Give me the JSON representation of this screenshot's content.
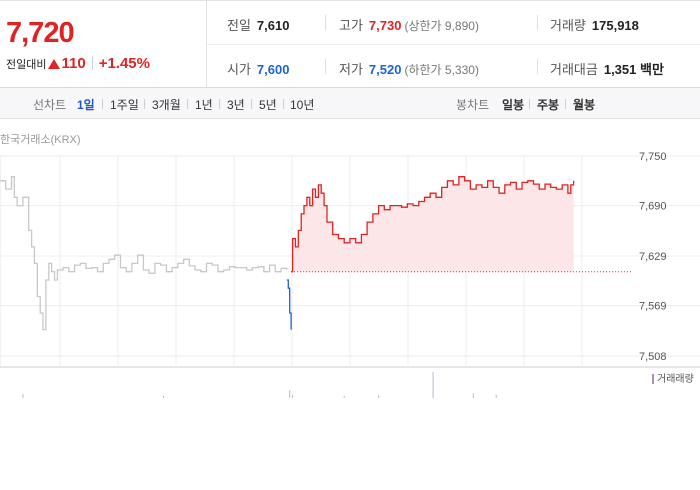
{
  "summary": {
    "price": "7,720",
    "change_label": "전일대비",
    "change_amount": "110",
    "change_rate": "+1.45%",
    "prev_close_label": "전일",
    "prev_close": "7,610",
    "high_label": "고가",
    "high": "7,730",
    "upper_limit": "(상한가 9,890)",
    "volume_label": "거래량",
    "volume": "175,918",
    "open_label": "시가",
    "open": "7,600",
    "low_label": "저가",
    "low": "7,520",
    "lower_limit": "(하한가 5,330)",
    "trade_value_label": "거래대금",
    "trade_value": "1,351 백만"
  },
  "tabs": {
    "line_label": "선차트",
    "line_periods": [
      "1일",
      "1주일",
      "3개월",
      "1년",
      "3년",
      "5년",
      "10년"
    ],
    "candle_label": "봉차트",
    "candle_periods": [
      "일봉",
      "주봉",
      "월봉"
    ]
  },
  "source": "한국거래소(KRX)",
  "colors": {
    "up": "#e12222",
    "down": "#1a64d6",
    "previous_day": "#c8c8c8",
    "fill": "#fde6e8",
    "volume_legend": "#a98fc9"
  },
  "chart_data": {
    "type": "line",
    "ylim": [
      7508,
      7750
    ],
    "yticks": [
      7750,
      7690,
      7629,
      7569,
      7508
    ],
    "yticklabels": [
      "7,750",
      "7,690",
      "7,629",
      "7,569",
      "7,508"
    ],
    "baseline": 7610,
    "volume_legend": "거래래량",
    "series": [
      {
        "x": [
          0,
          2,
          4,
          5,
          6,
          8,
          10,
          11,
          12,
          13,
          14,
          15,
          16,
          17,
          18,
          19,
          20,
          22,
          24,
          26,
          28,
          30,
          32,
          34,
          36,
          38,
          40,
          42,
          44,
          46,
          48,
          50,
          52,
          54,
          56,
          58,
          60,
          62,
          64,
          66,
          68,
          70,
          72,
          74,
          76,
          78,
          80,
          82,
          84,
          86,
          88,
          90,
          92,
          94,
          96,
          98,
          100
        ],
        "values": [
          7720,
          7710,
          7725,
          7700,
          7690,
          7700,
          7660,
          7640,
          7620,
          7580,
          7560,
          7540,
          7600,
          7620,
          7610,
          7600,
          7612,
          7615,
          7610,
          7618,
          7620,
          7614,
          7615,
          7610,
          7620,
          7625,
          7630,
          7615,
          7610,
          7620,
          7630,
          7612,
          7608,
          7620,
          7618,
          7610,
          7615,
          7620,
          7625,
          7617,
          7612,
          7610,
          7620,
          7618,
          7610,
          7612,
          7616,
          7615,
          7615,
          7612,
          7615,
          7616,
          7610,
          7618,
          7610,
          7614,
          7612
        ]
      },
      {
        "x": [
          100,
          100.5,
          101,
          101.5
        ],
        "values": [
          7600,
          7590,
          7560,
          7540
        ]
      },
      {
        "x": [
          101.5,
          102,
          103,
          104,
          105,
          106,
          107,
          108,
          109,
          110,
          111,
          112,
          113,
          114,
          116,
          118,
          120,
          122,
          124,
          126,
          128,
          130,
          132,
          134,
          136,
          138,
          140,
          142,
          144,
          146,
          148,
          150,
          152,
          154,
          156,
          158,
          160,
          162,
          164,
          166,
          168,
          170,
          172,
          174,
          176,
          178,
          180,
          182,
          184,
          186,
          188,
          190,
          192,
          194,
          196,
          198,
          199,
          200
        ],
        "values": [
          7610,
          7650,
          7640,
          7660,
          7680,
          7690,
          7700,
          7690,
          7710,
          7700,
          7715,
          7705,
          7690,
          7670,
          7655,
          7650,
          7645,
          7650,
          7645,
          7655,
          7670,
          7680,
          7690,
          7685,
          7690,
          7690,
          7688,
          7692,
          7690,
          7695,
          7700,
          7705,
          7700,
          7712,
          7720,
          7715,
          7725,
          7720,
          7710,
          7715,
          7712,
          7720,
          7712,
          7705,
          7715,
          7718,
          7710,
          7718,
          7720,
          7716,
          7710,
          7716,
          7712,
          7710,
          7715,
          7705,
          7715,
          7720
        ]
      }
    ],
    "volume": {
      "x": [
        8,
        57,
        101,
        102,
        120,
        132,
        151,
        165,
        173
      ],
      "values": [
        15,
        8,
        30,
        12,
        8,
        10,
        100,
        18,
        12
      ]
    }
  }
}
